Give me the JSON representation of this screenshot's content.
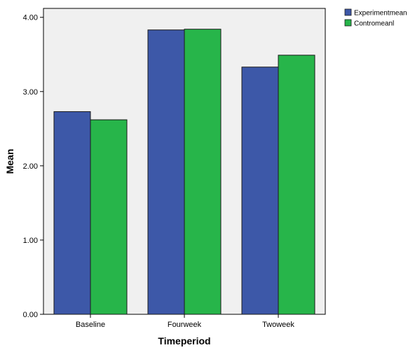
{
  "chart_data": {
    "type": "bar",
    "title": "",
    "xlabel": "Timeperiod",
    "ylabel": "Mean",
    "categories": [
      "Baseline",
      "Fourweek",
      "Twoweek"
    ],
    "series": [
      {
        "name": "Experimentmean",
        "color": "#3d58a8",
        "values": [
          2.73,
          3.83,
          3.33
        ]
      },
      {
        "name": "Contromeanl",
        "color": "#27b54a",
        "values": [
          2.62,
          3.84,
          3.49
        ]
      }
    ],
    "ylim": [
      0,
      4.12
    ],
    "yticks": [
      0,
      1,
      2,
      3,
      4
    ],
    "ytick_labels": [
      "0.00",
      "1.00",
      "2.00",
      "3.00",
      "4.00"
    ],
    "grid": false,
    "legend_position": "top-right",
    "plot_background": "#f0f0f0"
  }
}
